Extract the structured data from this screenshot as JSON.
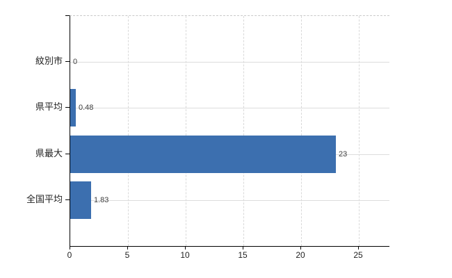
{
  "chart_data": {
    "type": "bar",
    "orientation": "horizontal",
    "title": "",
    "xlabel": "",
    "ylabel": "",
    "categories": [
      "紋別市",
      "県平均",
      "県最大",
      "全国平均"
    ],
    "values": [
      0,
      0.48,
      23,
      1.83
    ],
    "value_labels": [
      "0",
      "0.48",
      "23",
      "1.83"
    ],
    "x_ticks": [
      0,
      5,
      10,
      15,
      20,
      25
    ],
    "x_tick_labels": [
      "0",
      "5",
      "10",
      "15",
      "20",
      "25"
    ],
    "xlim": [
      0,
      27.65
    ],
    "grid": true,
    "legend_position": "none",
    "colors": {
      "bar": "#3C6FAF",
      "grid_h": "#dcdcdc",
      "grid_v": "#d9d9d9",
      "axis": "#000000",
      "category_text": "#222222",
      "tick_text": "#222222",
      "value_text": "#404040",
      "background": "#ffffff"
    }
  }
}
